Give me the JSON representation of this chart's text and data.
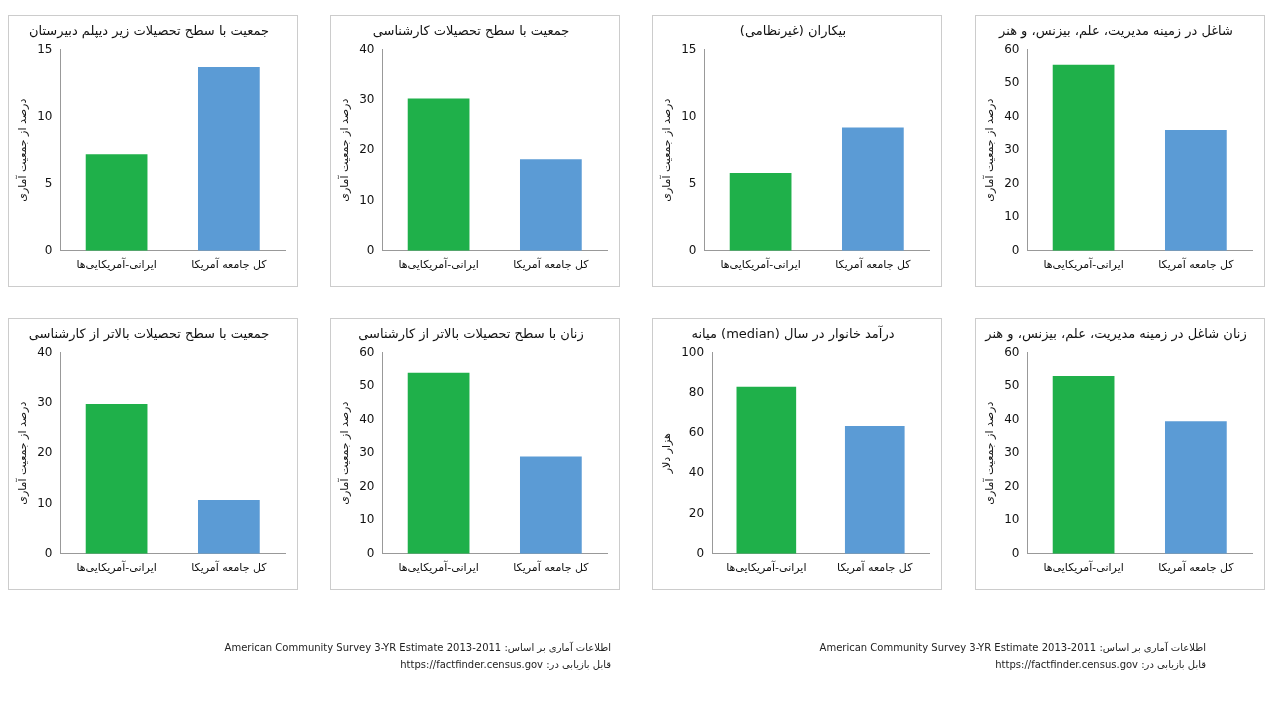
{
  "chart_data": [
    {
      "type": "bar",
      "title": "جمعیت با سطح تحصیلات زیر دیپلم دبیرستان",
      "ylabel": "درصد از جمعیت آماری",
      "categories": [
        "ایرانی-آمریکایی‌ها",
        "کل جامعه آمریکا"
      ],
      "values": [
        7.2,
        13.7
      ],
      "colors": [
        "#1fb04a",
        "#5b9bd5"
      ],
      "ylim": [
        0,
        15
      ],
      "yticks": [
        0,
        5,
        10,
        15
      ],
      "grid": false,
      "legend": false
    },
    {
      "type": "bar",
      "title": "جمعیت با سطح تحصیلات کارشناسی",
      "ylabel": "درصد از جمعیت آماری",
      "categories": [
        "ایرانی-آمریکایی‌ها",
        "کل جامعه آمریکا"
      ],
      "values": [
        30.3,
        18.2
      ],
      "colors": [
        "#1fb04a",
        "#5b9bd5"
      ],
      "ylim": [
        0,
        40
      ],
      "yticks": [
        0,
        10,
        20,
        30,
        40
      ],
      "grid": false,
      "legend": false
    },
    {
      "type": "bar",
      "title": "بیکاران (غیرنظامی)",
      "ylabel": "درصد از جمعیت آماری",
      "categories": [
        "ایرانی-آمریکایی‌ها",
        "کل جامعه آمریکا"
      ],
      "values": [
        5.8,
        9.2
      ],
      "colors": [
        "#1fb04a",
        "#5b9bd5"
      ],
      "ylim": [
        0,
        15
      ],
      "yticks": [
        0,
        5,
        10,
        15
      ],
      "grid": false,
      "legend": false
    },
    {
      "type": "bar",
      "title": "شاغل در زمینه مدیریت، علم، بیزنس، و هنر",
      "ylabel": "درصد از جمعیت آماری",
      "categories": [
        "ایرانی-آمریکایی‌ها",
        "کل جامعه آمریکا"
      ],
      "values": [
        55.5,
        36
      ],
      "colors": [
        "#1fb04a",
        "#5b9bd5"
      ],
      "ylim": [
        0,
        60
      ],
      "yticks": [
        0,
        10,
        20,
        30,
        40,
        50,
        60
      ],
      "grid": false,
      "legend": false
    },
    {
      "type": "bar",
      "title": "جمعیت با سطح تحصیلات بالاتر از کارشناسی",
      "ylabel": "درصد از جمعیت آماری",
      "categories": [
        "ایرانی-آمریکایی‌ها",
        "کل جامعه آمریکا"
      ],
      "values": [
        29.8,
        10.7
      ],
      "colors": [
        "#1fb04a",
        "#5b9bd5"
      ],
      "ylim": [
        0,
        40
      ],
      "yticks": [
        0,
        10,
        20,
        30,
        40
      ],
      "grid": false,
      "legend": false
    },
    {
      "type": "bar",
      "title": "زنان با سطح تحصیلات بالاتر از کارشناسی",
      "ylabel": "درصد از جمعیت آماری",
      "categories": [
        "ایرانی-آمریکایی‌ها",
        "کل جامعه آمریکا"
      ],
      "values": [
        54,
        29
      ],
      "colors": [
        "#1fb04a",
        "#5b9bd5"
      ],
      "ylim": [
        0,
        60
      ],
      "yticks": [
        0,
        10,
        20,
        30,
        40,
        50,
        60
      ],
      "grid": false,
      "legend": false,
      "annotations": [
        "اطلاعات آماری بر اساس: 2011-2013 American Community Survey 3-YR Estimate",
        "قابل بازیابی در: https://factfinder.census.gov"
      ]
    },
    {
      "type": "bar",
      "title": "میانه (median) درآمد خانوار در سال",
      "ylabel": "هزار دلار",
      "categories": [
        "ایرانی-آمریکایی‌ها",
        "کل جامعه آمریکا"
      ],
      "values": [
        83,
        63.5
      ],
      "colors": [
        "#1fb04a",
        "#5b9bd5"
      ],
      "ylim": [
        0,
        100
      ],
      "yticks": [
        0,
        20,
        40,
        60,
        80,
        100
      ],
      "grid": false,
      "legend": false
    },
    {
      "type": "bar",
      "title": "زنان شاغل در زمینه مدیریت، علم، بیزنس، و هنر",
      "ylabel": "درصد از جمعیت آماری",
      "categories": [
        "ایرانی-آمریکایی‌ها",
        "کل جامعه آمریکا"
      ],
      "values": [
        53,
        39.5
      ],
      "colors": [
        "#1fb04a",
        "#5b9bd5"
      ],
      "ylim": [
        0,
        60
      ],
      "yticks": [
        0,
        10,
        20,
        30,
        40,
        50,
        60
      ],
      "grid": false,
      "legend": false,
      "annotations": [
        "اطلاعات آماری بر اساس: 2011-2013 American Community Survey 3-YR Estimate",
        "قابل بازیابی در: https://factfinder.census.gov"
      ]
    }
  ]
}
